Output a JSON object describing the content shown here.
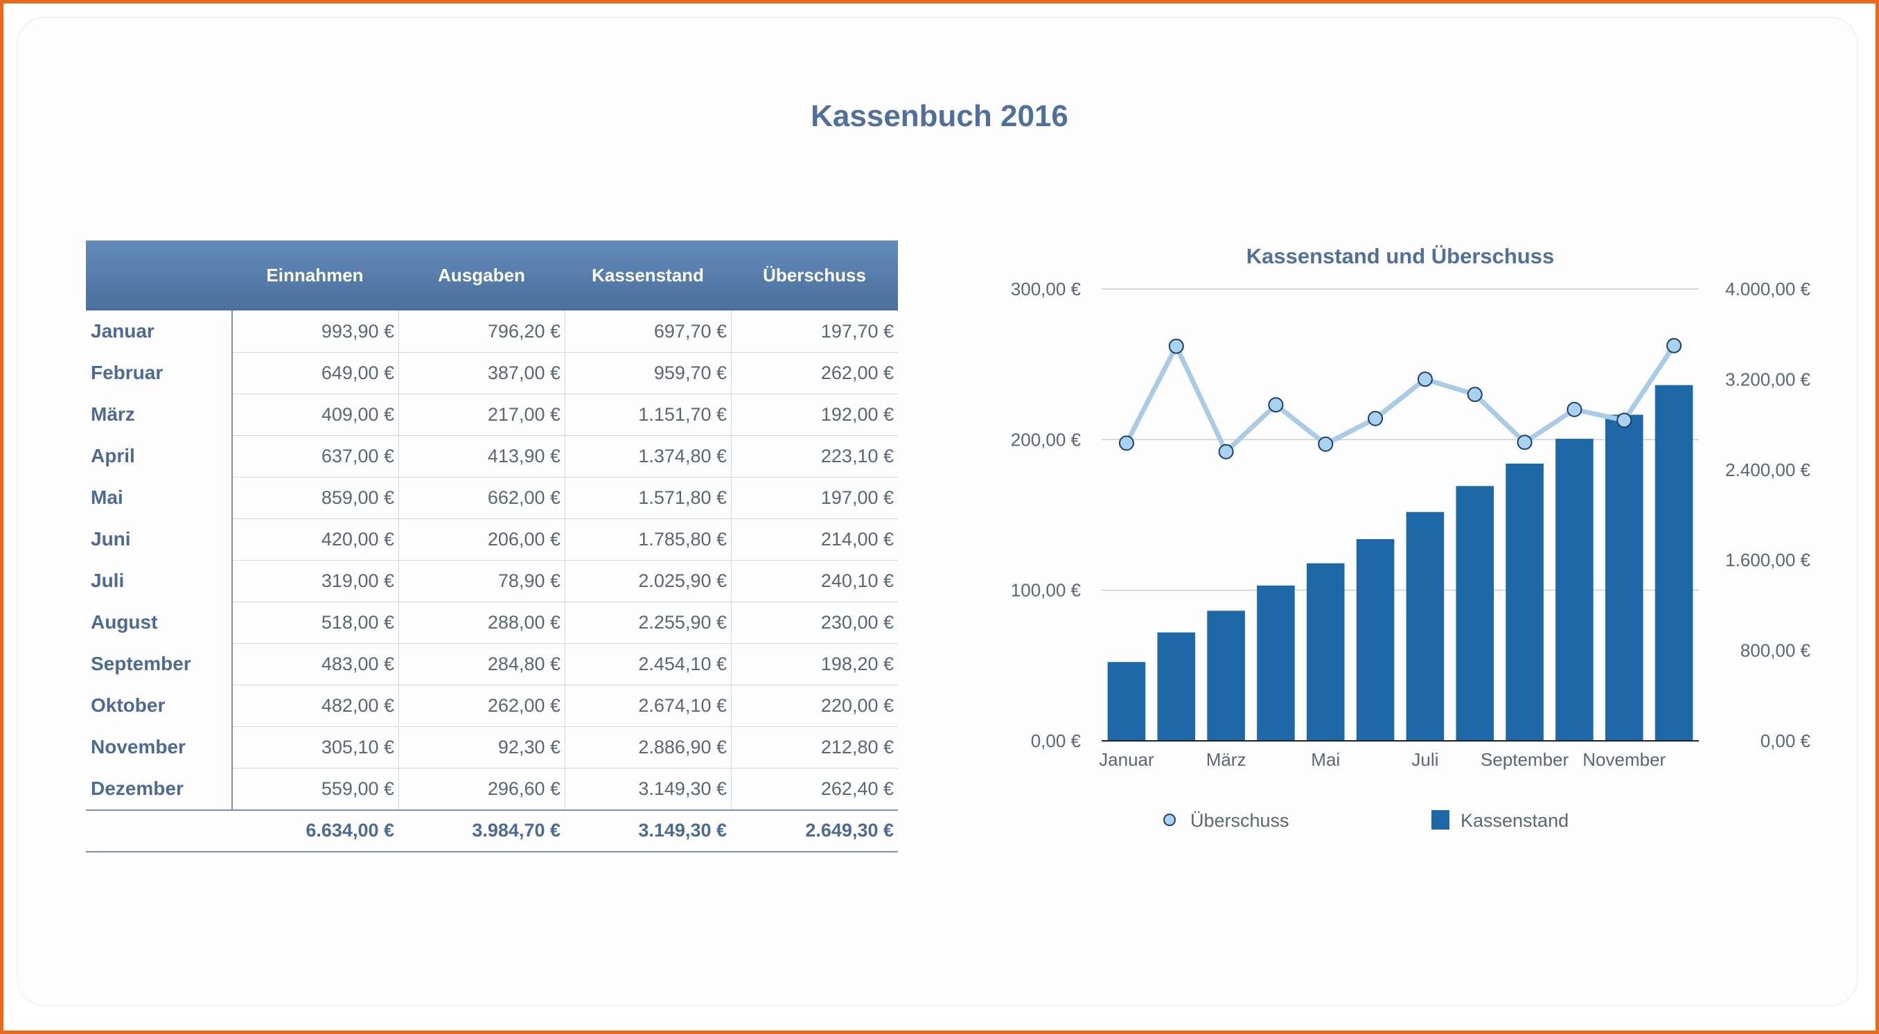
{
  "page_title": "Kassenbuch 2016",
  "colors": {
    "header_gradient_top": "#628bba",
    "header_gradient_bottom": "#4c6f9c",
    "title_text": "#50709a",
    "bar_fill": "#1f68a8",
    "line_stroke": "#a9cbe6",
    "marker_fill": "#a9d1f0",
    "marker_stroke": "#1d3f66"
  },
  "table": {
    "headers": [
      "Einnahmen",
      "Ausgaben",
      "Kassenstand",
      "Überschuss"
    ],
    "rows": [
      {
        "label": "Januar",
        "values": [
          "993,90 €",
          "796,20 €",
          "697,70 €",
          "197,70 €"
        ]
      },
      {
        "label": "Februar",
        "values": [
          "649,00 €",
          "387,00 €",
          "959,70 €",
          "262,00 €"
        ]
      },
      {
        "label": "März",
        "values": [
          "409,00 €",
          "217,00 €",
          "1.151,70 €",
          "192,00 €"
        ]
      },
      {
        "label": "April",
        "values": [
          "637,00 €",
          "413,90 €",
          "1.374,80 €",
          "223,10 €"
        ]
      },
      {
        "label": "Mai",
        "values": [
          "859,00 €",
          "662,00 €",
          "1.571,80 €",
          "197,00 €"
        ]
      },
      {
        "label": "Juni",
        "values": [
          "420,00 €",
          "206,00 €",
          "1.785,80 €",
          "214,00 €"
        ]
      },
      {
        "label": "Juli",
        "values": [
          "319,00 €",
          "78,90 €",
          "2.025,90 €",
          "240,10 €"
        ]
      },
      {
        "label": "August",
        "values": [
          "518,00 €",
          "288,00 €",
          "2.255,90 €",
          "230,00 €"
        ]
      },
      {
        "label": "September",
        "values": [
          "483,00 €",
          "284,80 €",
          "2.454,10 €",
          "198,20 €"
        ]
      },
      {
        "label": "Oktober",
        "values": [
          "482,00 €",
          "262,00 €",
          "2.674,10 €",
          "220,00 €"
        ]
      },
      {
        "label": "November",
        "values": [
          "305,10 €",
          "92,30 €",
          "2.886,90 €",
          "212,80 €"
        ]
      },
      {
        "label": "Dezember",
        "values": [
          "559,00 €",
          "296,60 €",
          "3.149,30 €",
          "262,40 €"
        ]
      }
    ],
    "totals": [
      "6.634,00 €",
      "3.984,70 €",
      "3.149,30 €",
      "2.649,30 €"
    ]
  },
  "chart_data": {
    "type": "bar",
    "title": "Kassenstand und Überschuss",
    "categories": [
      "Januar",
      "Februar",
      "März",
      "April",
      "Mai",
      "Juni",
      "Juli",
      "August",
      "September",
      "Oktober",
      "November",
      "Dezember"
    ],
    "x_tick_labels": [
      "Januar",
      "März",
      "Mai",
      "Juli",
      "September",
      "November"
    ],
    "series": [
      {
        "name": "Kassenstand",
        "type": "bar",
        "axis": "right",
        "values": [
          697.7,
          959.7,
          1151.7,
          1374.8,
          1571.8,
          1785.8,
          2025.9,
          2255.9,
          2454.1,
          2674.1,
          2886.9,
          3149.3
        ]
      },
      {
        "name": "Überschuss",
        "type": "line",
        "axis": "left",
        "values": [
          197.7,
          262.0,
          192.0,
          223.1,
          197.0,
          214.0,
          240.1,
          230.0,
          198.2,
          220.0,
          212.8,
          262.4
        ]
      }
    ],
    "y_left": {
      "range": [
        0,
        300
      ],
      "ticks": [
        0,
        100,
        200,
        300
      ],
      "tick_labels": [
        "0,00 €",
        "100,00 €",
        "200,00 €",
        "300,00 €"
      ]
    },
    "y_right": {
      "range": [
        0,
        4000
      ],
      "ticks": [
        0,
        800,
        1600,
        2400,
        3200,
        4000
      ],
      "tick_labels": [
        "0,00 €",
        "800,00 €",
        "1.600,00 €",
        "2.400,00 €",
        "3.200,00 €",
        "4.000,00 €"
      ]
    },
    "grid": true,
    "legend": {
      "position": "bottom",
      "entries": [
        "Überschuss",
        "Kassenstand"
      ]
    }
  }
}
